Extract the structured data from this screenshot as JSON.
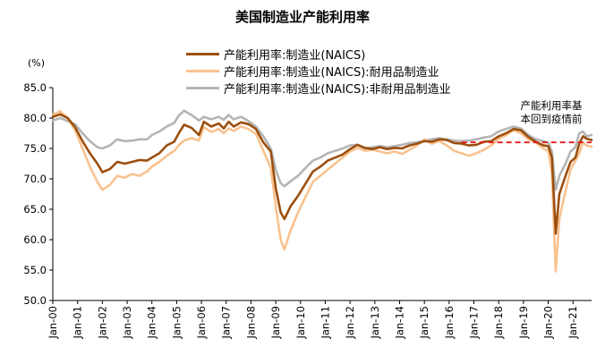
{
  "chart_data": {
    "type": "line",
    "title": "美国制造业产能利用率",
    "ylabel": "(%)",
    "ylim": [
      50,
      85
    ],
    "yticks": [
      85.0,
      80.0,
      75.0,
      70.0,
      65.0,
      60.0,
      55.0,
      50.0
    ],
    "ytick_labels": [
      "85.0",
      "80.0",
      "75.0",
      "70.0",
      "65.0",
      "60.0",
      "55.0",
      "50.0"
    ],
    "x_range": [
      2000,
      2021.75
    ],
    "xtick_labels": [
      "Jan-00",
      "Jan-01",
      "Jan-02",
      "Jan-03",
      "Jan-04",
      "Jan-05",
      "Jan-06",
      "Jan-07",
      "Jan-08",
      "Jan-09",
      "Jan-10",
      "Jan-11",
      "Jan-12",
      "Jan-13",
      "Jan-14",
      "Jan-15",
      "Jan-16",
      "Jan-17",
      "Jan-18",
      "Jan-19",
      "Jan-20",
      "Jan-21"
    ],
    "legend_position": "top",
    "grid": false,
    "reference_line": {
      "y": 76.0,
      "x_from": 2016.5,
      "x_to": 2021.75,
      "color": "#e41a1c",
      "style": "dashed"
    },
    "annotation": [
      "产能利用率基",
      "本回到疫情前"
    ],
    "series": [
      {
        "name": "产能利用率:制造业(NAICS)",
        "color": "#9c4f0f",
        "points": [
          [
            2000.0,
            80.2
          ],
          [
            2000.3,
            80.6
          ],
          [
            2000.6,
            80.0
          ],
          [
            2000.9,
            78.5
          ],
          [
            2001.2,
            76.2
          ],
          [
            2001.5,
            74.2
          ],
          [
            2001.8,
            72.5
          ],
          [
            2002.0,
            71.1
          ],
          [
            2002.3,
            71.6
          ],
          [
            2002.6,
            72.8
          ],
          [
            2002.9,
            72.5
          ],
          [
            2003.2,
            72.8
          ],
          [
            2003.5,
            73.1
          ],
          [
            2003.8,
            73.0
          ],
          [
            2004.0,
            73.5
          ],
          [
            2004.3,
            74.2
          ],
          [
            2004.6,
            75.5
          ],
          [
            2004.9,
            76.1
          ],
          [
            2005.1,
            77.6
          ],
          [
            2005.3,
            78.9
          ],
          [
            2005.6,
            78.4
          ],
          [
            2005.9,
            77.2
          ],
          [
            2006.1,
            79.4
          ],
          [
            2006.4,
            78.6
          ],
          [
            2006.7,
            79.1
          ],
          [
            2006.9,
            78.3
          ],
          [
            2007.1,
            79.4
          ],
          [
            2007.3,
            78.6
          ],
          [
            2007.6,
            79.3
          ],
          [
            2007.9,
            79.0
          ],
          [
            2008.2,
            78.2
          ],
          [
            2008.5,
            76.0
          ],
          [
            2008.8,
            74.5
          ],
          [
            2009.0,
            68.5
          ],
          [
            2009.2,
            64.5
          ],
          [
            2009.35,
            63.4
          ],
          [
            2009.6,
            65.5
          ],
          [
            2009.9,
            67.2
          ],
          [
            2010.2,
            69.2
          ],
          [
            2010.5,
            71.2
          ],
          [
            2010.8,
            72.0
          ],
          [
            2011.1,
            73.0
          ],
          [
            2011.4,
            73.5
          ],
          [
            2011.7,
            74.0
          ],
          [
            2012.0,
            74.9
          ],
          [
            2012.3,
            75.6
          ],
          [
            2012.6,
            75.1
          ],
          [
            2012.9,
            74.9
          ],
          [
            2013.2,
            75.2
          ],
          [
            2013.5,
            74.9
          ],
          [
            2013.8,
            75.1
          ],
          [
            2014.1,
            75.0
          ],
          [
            2014.4,
            75.5
          ],
          [
            2014.7,
            75.8
          ],
          [
            2015.0,
            76.2
          ],
          [
            2015.3,
            76.1
          ],
          [
            2015.6,
            76.5
          ],
          [
            2015.9,
            76.4
          ],
          [
            2016.2,
            75.9
          ],
          [
            2016.5,
            75.8
          ],
          [
            2016.8,
            75.5
          ],
          [
            2017.1,
            75.6
          ],
          [
            2017.4,
            76.1
          ],
          [
            2017.7,
            76.2
          ],
          [
            2018.0,
            77.0
          ],
          [
            2018.3,
            77.5
          ],
          [
            2018.6,
            78.2
          ],
          [
            2018.9,
            78.0
          ],
          [
            2019.2,
            76.9
          ],
          [
            2019.5,
            76.1
          ],
          [
            2019.8,
            75.5
          ],
          [
            2020.0,
            75.4
          ],
          [
            2020.15,
            73.5
          ],
          [
            2020.3,
            61.0
          ],
          [
            2020.45,
            67.5
          ],
          [
            2020.7,
            70.5
          ],
          [
            2020.9,
            72.8
          ],
          [
            2021.1,
            73.5
          ],
          [
            2021.25,
            75.8
          ],
          [
            2021.4,
            77.0
          ],
          [
            2021.55,
            76.6
          ],
          [
            2021.75,
            76.4
          ]
        ]
      },
      {
        "name": "产能利用率:制造业(NAICS):耐用品制造业",
        "color": "#f9c28f",
        "points": [
          [
            2000.0,
            80.6
          ],
          [
            2000.3,
            81.1
          ],
          [
            2000.6,
            80.0
          ],
          [
            2000.9,
            78.0
          ],
          [
            2001.2,
            75.0
          ],
          [
            2001.5,
            72.0
          ],
          [
            2001.8,
            69.5
          ],
          [
            2002.0,
            68.2
          ],
          [
            2002.3,
            69.0
          ],
          [
            2002.6,
            70.5
          ],
          [
            2002.9,
            70.2
          ],
          [
            2003.2,
            70.8
          ],
          [
            2003.5,
            70.5
          ],
          [
            2003.8,
            71.2
          ],
          [
            2004.0,
            72.0
          ],
          [
            2004.3,
            72.8
          ],
          [
            2004.6,
            73.8
          ],
          [
            2004.9,
            74.6
          ],
          [
            2005.1,
            75.6
          ],
          [
            2005.3,
            76.3
          ],
          [
            2005.6,
            76.7
          ],
          [
            2005.9,
            76.3
          ],
          [
            2006.1,
            78.5
          ],
          [
            2006.4,
            77.7
          ],
          [
            2006.7,
            78.2
          ],
          [
            2006.9,
            77.5
          ],
          [
            2007.1,
            78.3
          ],
          [
            2007.3,
            77.9
          ],
          [
            2007.6,
            78.6
          ],
          [
            2007.9,
            78.2
          ],
          [
            2008.2,
            77.4
          ],
          [
            2008.5,
            74.6
          ],
          [
            2008.8,
            71.8
          ],
          [
            2009.0,
            65.5
          ],
          [
            2009.2,
            60.0
          ],
          [
            2009.35,
            58.4
          ],
          [
            2009.6,
            61.5
          ],
          [
            2009.9,
            64.5
          ],
          [
            2010.2,
            67.0
          ],
          [
            2010.5,
            69.5
          ],
          [
            2010.8,
            70.5
          ],
          [
            2011.1,
            71.5
          ],
          [
            2011.4,
            72.5
          ],
          [
            2011.7,
            73.5
          ],
          [
            2012.0,
            74.5
          ],
          [
            2012.3,
            75.1
          ],
          [
            2012.6,
            74.6
          ],
          [
            2012.9,
            74.8
          ],
          [
            2013.2,
            74.5
          ],
          [
            2013.5,
            74.2
          ],
          [
            2013.8,
            74.5
          ],
          [
            2014.1,
            74.1
          ],
          [
            2014.4,
            74.8
          ],
          [
            2014.7,
            75.5
          ],
          [
            2015.0,
            76.5
          ],
          [
            2015.3,
            75.8
          ],
          [
            2015.6,
            76.2
          ],
          [
            2015.9,
            75.5
          ],
          [
            2016.2,
            74.6
          ],
          [
            2016.5,
            74.2
          ],
          [
            2016.8,
            73.8
          ],
          [
            2017.1,
            74.2
          ],
          [
            2017.4,
            74.8
          ],
          [
            2017.7,
            75.5
          ],
          [
            2018.0,
            76.6
          ],
          [
            2018.3,
            77.2
          ],
          [
            2018.6,
            78.0
          ],
          [
            2018.9,
            77.5
          ],
          [
            2019.2,
            76.5
          ],
          [
            2019.5,
            76.0
          ],
          [
            2019.8,
            75.0
          ],
          [
            2020.0,
            74.6
          ],
          [
            2020.15,
            71.0
          ],
          [
            2020.3,
            54.8
          ],
          [
            2020.45,
            63.5
          ],
          [
            2020.7,
            68.0
          ],
          [
            2020.9,
            71.5
          ],
          [
            2021.1,
            73.0
          ],
          [
            2021.25,
            74.2
          ],
          [
            2021.4,
            76.0
          ],
          [
            2021.55,
            75.5
          ],
          [
            2021.75,
            75.3
          ]
        ]
      },
      {
        "name": "产能利用率:制造业(NAICS):非耐用品制造业",
        "color": "#b5b5b5",
        "points": [
          [
            2000.0,
            79.6
          ],
          [
            2000.3,
            80.0
          ],
          [
            2000.6,
            79.5
          ],
          [
            2000.9,
            79.0
          ],
          [
            2001.2,
            77.5
          ],
          [
            2001.5,
            76.2
          ],
          [
            2001.8,
            75.2
          ],
          [
            2002.0,
            75.0
          ],
          [
            2002.3,
            75.5
          ],
          [
            2002.6,
            76.5
          ],
          [
            2002.9,
            76.2
          ],
          [
            2003.2,
            76.3
          ],
          [
            2003.5,
            76.5
          ],
          [
            2003.8,
            76.5
          ],
          [
            2004.0,
            77.2
          ],
          [
            2004.3,
            77.8
          ],
          [
            2004.6,
            78.6
          ],
          [
            2004.9,
            79.2
          ],
          [
            2005.1,
            80.5
          ],
          [
            2005.3,
            81.2
          ],
          [
            2005.6,
            80.5
          ],
          [
            2005.9,
            79.6
          ],
          [
            2006.1,
            80.2
          ],
          [
            2006.4,
            79.8
          ],
          [
            2006.7,
            80.2
          ],
          [
            2006.9,
            79.7
          ],
          [
            2007.1,
            80.5
          ],
          [
            2007.3,
            79.8
          ],
          [
            2007.6,
            80.2
          ],
          [
            2007.9,
            79.5
          ],
          [
            2008.2,
            78.6
          ],
          [
            2008.5,
            77.0
          ],
          [
            2008.8,
            75.0
          ],
          [
            2009.0,
            71.5
          ],
          [
            2009.2,
            69.3
          ],
          [
            2009.35,
            68.8
          ],
          [
            2009.6,
            69.6
          ],
          [
            2009.9,
            70.5
          ],
          [
            2010.2,
            71.8
          ],
          [
            2010.5,
            73.0
          ],
          [
            2010.8,
            73.5
          ],
          [
            2011.1,
            74.2
          ],
          [
            2011.4,
            74.6
          ],
          [
            2011.7,
            75.0
          ],
          [
            2012.0,
            75.5
          ],
          [
            2012.3,
            75.6
          ],
          [
            2012.6,
            75.0
          ],
          [
            2012.9,
            75.2
          ],
          [
            2013.2,
            75.4
          ],
          [
            2013.5,
            75.2
          ],
          [
            2013.8,
            75.4
          ],
          [
            2014.1,
            75.6
          ],
          [
            2014.4,
            75.9
          ],
          [
            2014.7,
            76.0
          ],
          [
            2015.0,
            76.3
          ],
          [
            2015.3,
            76.5
          ],
          [
            2015.6,
            76.7
          ],
          [
            2015.9,
            76.5
          ],
          [
            2016.2,
            76.3
          ],
          [
            2016.5,
            76.2
          ],
          [
            2016.8,
            76.3
          ],
          [
            2017.1,
            76.5
          ],
          [
            2017.4,
            76.8
          ],
          [
            2017.7,
            77.0
          ],
          [
            2018.0,
            77.8
          ],
          [
            2018.3,
            78.2
          ],
          [
            2018.6,
            78.6
          ],
          [
            2018.9,
            78.3
          ],
          [
            2019.2,
            77.2
          ],
          [
            2019.5,
            76.5
          ],
          [
            2019.8,
            76.2
          ],
          [
            2020.0,
            76.0
          ],
          [
            2020.15,
            74.5
          ],
          [
            2020.3,
            68.2
          ],
          [
            2020.45,
            70.5
          ],
          [
            2020.7,
            72.5
          ],
          [
            2020.9,
            74.5
          ],
          [
            2021.1,
            75.2
          ],
          [
            2021.25,
            77.5
          ],
          [
            2021.4,
            77.8
          ],
          [
            2021.55,
            77.0
          ],
          [
            2021.75,
            77.2
          ]
        ]
      }
    ]
  }
}
